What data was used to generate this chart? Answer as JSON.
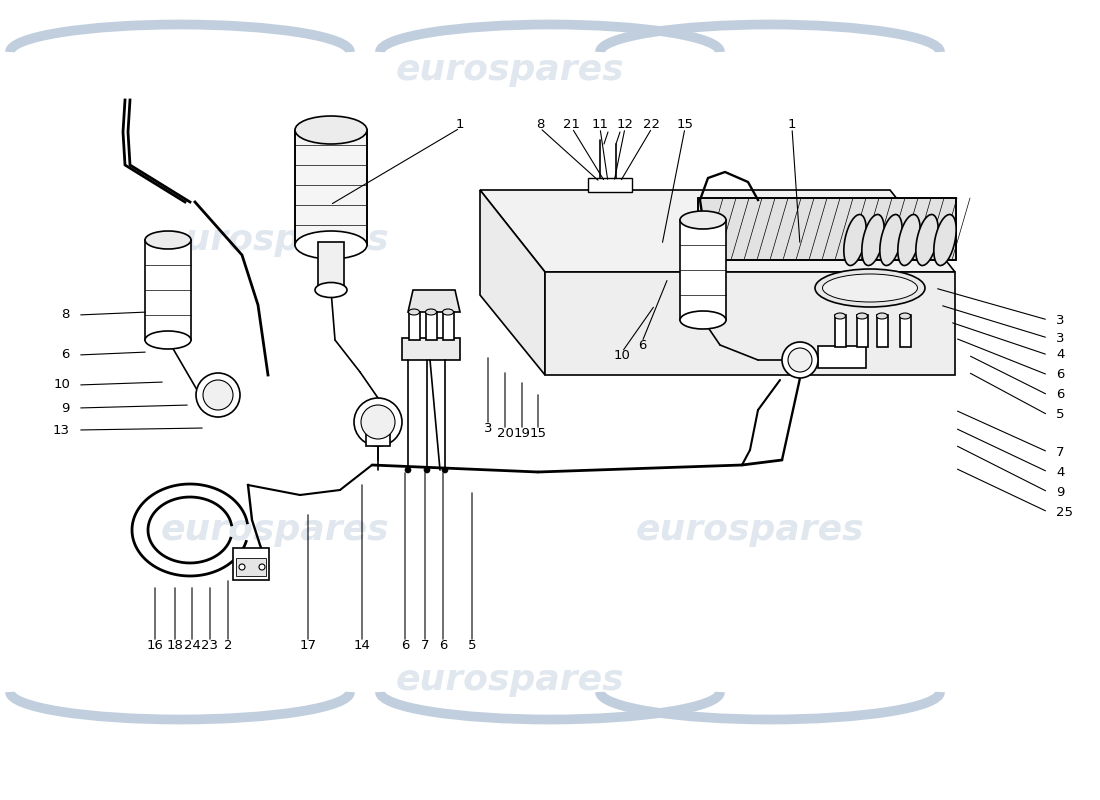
{
  "bg_color": "#ffffff",
  "line_color": "#000000",
  "wm_color": "#c8d4e0",
  "wm_text": "eurospares",
  "top_labels": [
    [
      "16",
      155,
      215,
      155,
      158
    ],
    [
      "18",
      175,
      215,
      175,
      158
    ],
    [
      "24",
      192,
      215,
      192,
      158
    ],
    [
      "23",
      210,
      215,
      210,
      158
    ],
    [
      "2",
      228,
      222,
      228,
      158
    ],
    [
      "17",
      308,
      288,
      308,
      158
    ],
    [
      "14",
      362,
      318,
      362,
      158
    ],
    [
      "6",
      405,
      330,
      405,
      158
    ],
    [
      "7",
      425,
      330,
      425,
      158
    ],
    [
      "6",
      443,
      330,
      443,
      158
    ],
    [
      "5",
      472,
      310,
      472,
      158
    ]
  ],
  "left_labels": [
    [
      "13",
      205,
      372,
      78,
      370
    ],
    [
      "9",
      190,
      395,
      78,
      392
    ],
    [
      "10",
      165,
      418,
      78,
      415
    ],
    [
      "6",
      148,
      448,
      78,
      445
    ],
    [
      "8",
      148,
      488,
      78,
      485
    ]
  ],
  "right_labels": [
    [
      "25",
      955,
      332,
      1048,
      288
    ],
    [
      "9",
      955,
      355,
      1048,
      308
    ],
    [
      "4",
      955,
      372,
      1048,
      328
    ],
    [
      "7",
      955,
      390,
      1048,
      348
    ],
    [
      "5",
      968,
      428,
      1048,
      385
    ],
    [
      "6",
      968,
      445,
      1048,
      405
    ],
    [
      "6",
      955,
      462,
      1048,
      425
    ],
    [
      "4",
      950,
      478,
      1048,
      445
    ],
    [
      "3",
      940,
      495,
      1048,
      462
    ],
    [
      "3",
      935,
      512,
      1048,
      480
    ]
  ],
  "bottom_labels": [
    [
      "1",
      330,
      595,
      460,
      672
    ],
    [
      "8",
      600,
      618,
      540,
      672
    ],
    [
      "21",
      605,
      618,
      572,
      672
    ],
    [
      "11",
      608,
      618,
      600,
      672
    ],
    [
      "12",
      614,
      618,
      625,
      672
    ],
    [
      "22",
      620,
      618,
      652,
      672
    ],
    [
      "15",
      662,
      555,
      685,
      672
    ],
    [
      "1",
      800,
      555,
      792,
      672
    ]
  ],
  "center_labels": [
    [
      "3",
      488,
      445,
      488,
      375
    ],
    [
      "20",
      505,
      430,
      505,
      370
    ],
    [
      "19",
      522,
      420,
      522,
      370
    ],
    [
      "15",
      538,
      408,
      538,
      370
    ],
    [
      "10",
      655,
      495,
      622,
      448
    ],
    [
      "6",
      668,
      522,
      642,
      458
    ]
  ]
}
